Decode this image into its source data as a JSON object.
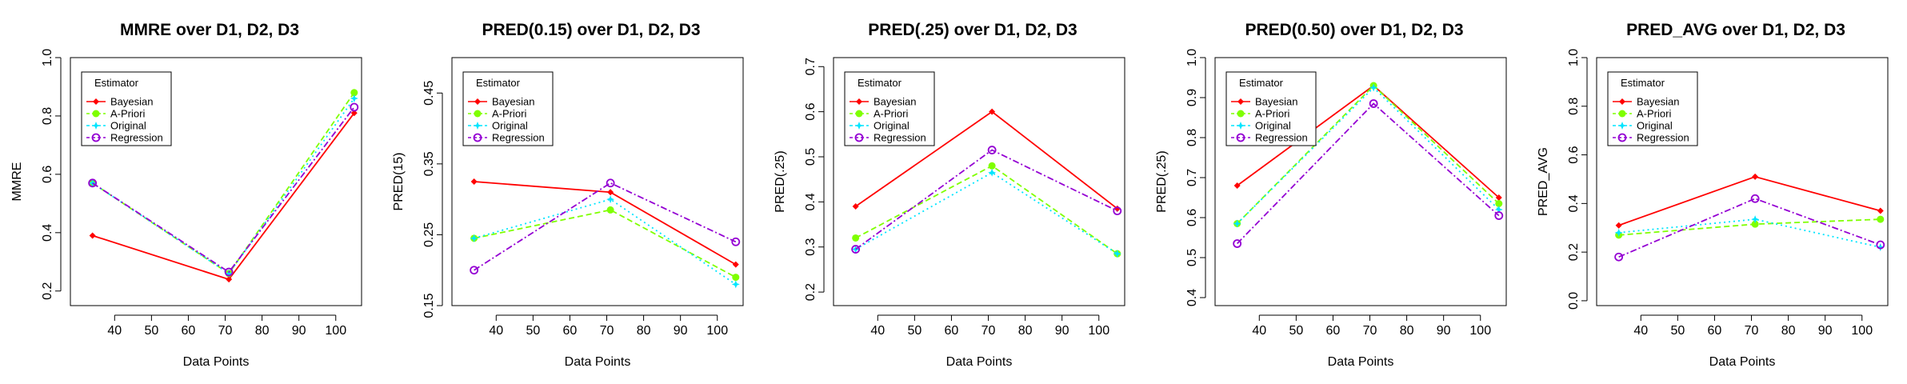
{
  "legend": {
    "title": "Estimator",
    "entries": [
      "Bayesian",
      "A-Priori",
      "Original",
      "Regression"
    ]
  },
  "series_colors": {
    "Bayesian": "#ff0000",
    "A-Priori": "#7fff00",
    "Original": "#00e5ff",
    "Regression": "#9400d3"
  },
  "chart_data": [
    {
      "type": "line",
      "title": "MMRE over D1, D2, D3",
      "xlabel": "Data Points",
      "ylabel": "MMRE",
      "x": [
        34,
        71,
        105
      ],
      "xlim": [
        28,
        107
      ],
      "ylim": [
        0.15,
        1.0
      ],
      "xticks": [
        "40",
        "50",
        "60",
        "70",
        "80",
        "90",
        "100"
      ],
      "yticks": [
        "0.2",
        "0.4",
        "0.6",
        "0.8",
        "1.0"
      ],
      "legend_position": "top-left",
      "series": [
        {
          "name": "Bayesian",
          "values": [
            0.39,
            0.24,
            0.81
          ]
        },
        {
          "name": "A-Priori",
          "values": [
            0.57,
            0.26,
            0.88
          ]
        },
        {
          "name": "Original",
          "values": [
            0.57,
            0.26,
            0.86
          ]
        },
        {
          "name": "Regression",
          "values": [
            0.57,
            0.265,
            0.83
          ]
        }
      ]
    },
    {
      "type": "line",
      "title": "PRED(0.15) over D1, D2, D3",
      "xlabel": "Data Points",
      "ylabel": "PRED(15)",
      "x": [
        34,
        71,
        105
      ],
      "xlim": [
        28,
        107
      ],
      "ylim": [
        0.15,
        0.5
      ],
      "xticks": [
        "40",
        "50",
        "60",
        "70",
        "80",
        "90",
        "100"
      ],
      "yticks": [
        "0.15",
        "0.25",
        "0.35",
        "0.45"
      ],
      "legend_position": "top-left",
      "series": [
        {
          "name": "Bayesian",
          "values": [
            0.325,
            0.31,
            0.208
          ]
        },
        {
          "name": "A-Priori",
          "values": [
            0.245,
            0.285,
            0.19
          ]
        },
        {
          "name": "Original",
          "values": [
            0.245,
            0.3,
            0.18
          ]
        },
        {
          "name": "Regression",
          "values": [
            0.2,
            0.323,
            0.24
          ]
        }
      ]
    },
    {
      "type": "line",
      "title": "PRED(.25) over D1, D2, D3",
      "xlabel": "Data Points",
      "ylabel": "PRED(.25)",
      "x": [
        34,
        71,
        105
      ],
      "xlim": [
        28,
        107
      ],
      "ylim": [
        0.17,
        0.72
      ],
      "xticks": [
        "40",
        "50",
        "60",
        "70",
        "80",
        "90",
        "100"
      ],
      "yticks": [
        "0.2",
        "0.3",
        "0.4",
        "0.5",
        "0.6",
        "0.7"
      ],
      "legend_position": "top-left",
      "series": [
        {
          "name": "Bayesian",
          "values": [
            0.39,
            0.6,
            0.385
          ]
        },
        {
          "name": "A-Priori",
          "values": [
            0.32,
            0.48,
            0.285
          ]
        },
        {
          "name": "Original",
          "values": [
            0.295,
            0.465,
            0.285
          ]
        },
        {
          "name": "Regression",
          "values": [
            0.295,
            0.515,
            0.38
          ]
        }
      ]
    },
    {
      "type": "line",
      "title": "PRED(0.50) over D1, D2, D3",
      "xlabel": "Data Points",
      "ylabel": "PRED(.25)",
      "x": [
        34,
        71,
        105
      ],
      "xlim": [
        28,
        107
      ],
      "ylim": [
        0.38,
        1.0
      ],
      "xticks": [
        "40",
        "50",
        "60",
        "70",
        "80",
        "90",
        "100"
      ],
      "yticks": [
        "0.4",
        "0.5",
        "0.6",
        "0.7",
        "0.8",
        "0.9",
        "1.0"
      ],
      "legend_position": "top-left",
      "series": [
        {
          "name": "Bayesian",
          "values": [
            0.68,
            0.93,
            0.65
          ]
        },
        {
          "name": "A-Priori",
          "values": [
            0.585,
            0.93,
            0.635
          ]
        },
        {
          "name": "Original",
          "values": [
            0.585,
            0.925,
            0.62
          ]
        },
        {
          "name": "Regression",
          "values": [
            0.535,
            0.885,
            0.605
          ]
        }
      ]
    },
    {
      "type": "line",
      "title": "PRED_AVG over D1, D2, D3",
      "xlabel": "Data Points",
      "ylabel": "PRED_AVG",
      "x": [
        34,
        71,
        105
      ],
      "xlim": [
        28,
        107
      ],
      "ylim": [
        -0.02,
        1.0
      ],
      "xticks": [
        "40",
        "50",
        "60",
        "70",
        "80",
        "90",
        "100"
      ],
      "yticks": [
        "0.0",
        "0.2",
        "0.4",
        "0.6",
        "0.8",
        "1.0"
      ],
      "legend_position": "top-left",
      "series": [
        {
          "name": "Bayesian",
          "values": [
            0.31,
            0.51,
            0.37
          ]
        },
        {
          "name": "A-Priori",
          "values": [
            0.27,
            0.315,
            0.335
          ]
        },
        {
          "name": "Original",
          "values": [
            0.28,
            0.335,
            0.22
          ]
        },
        {
          "name": "Regression",
          "values": [
            0.18,
            0.42,
            0.23
          ]
        }
      ]
    }
  ]
}
